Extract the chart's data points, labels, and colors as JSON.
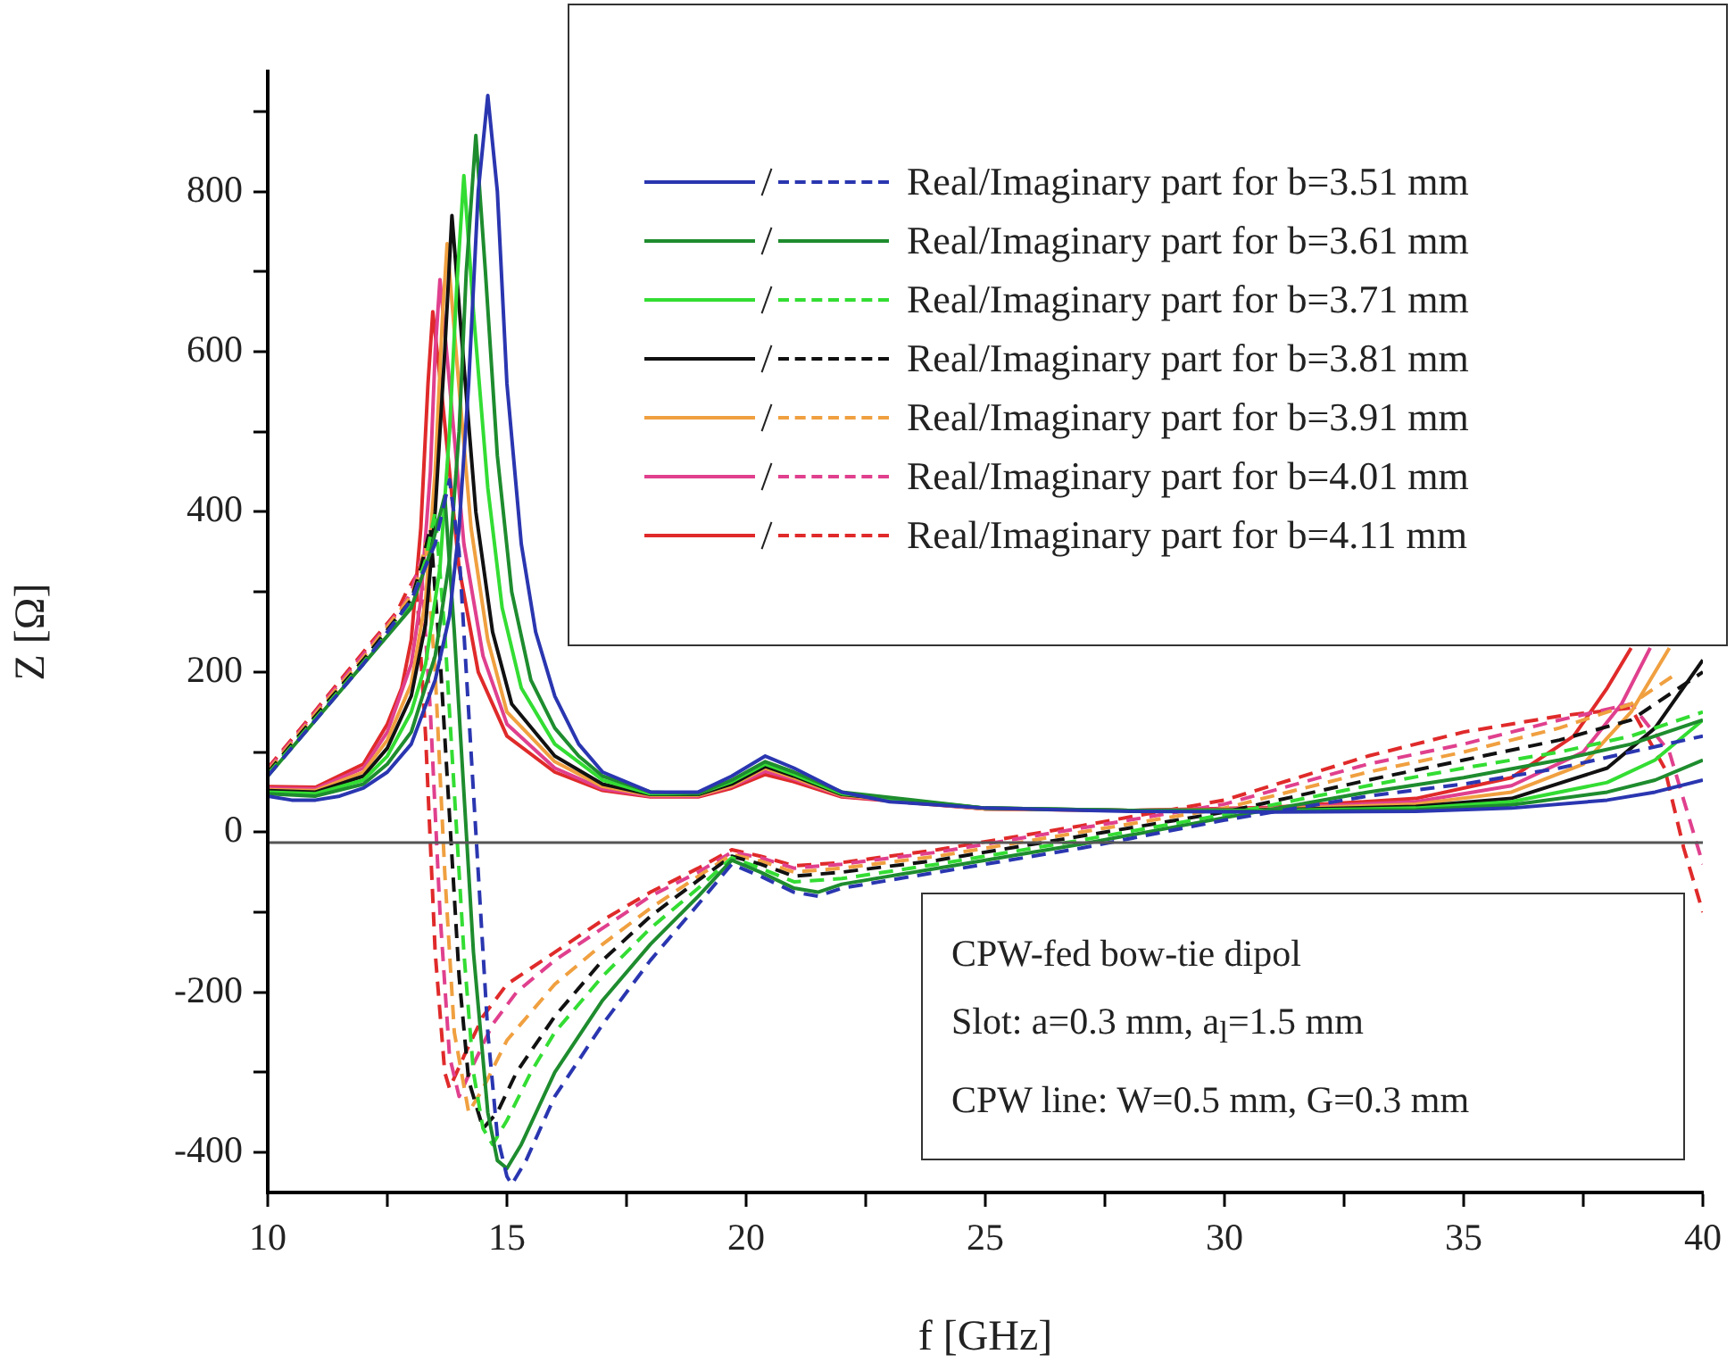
{
  "chart_data": {
    "type": "line",
    "xlabel": "f [GHz]",
    "ylabel": "Z [Ω]",
    "xlim": [
      10,
      40
    ],
    "ylim": [
      -450,
      950
    ],
    "xticks": [
      10,
      {
        "value": 12.5,
        "label": null
      },
      15,
      {
        "value": 17.5,
        "label": null
      },
      20,
      {
        "value": 22.5,
        "label": null
      },
      25,
      {
        "value": 27.5,
        "label": null
      },
      30,
      {
        "value": 32.5,
        "label": null
      },
      35,
      {
        "value": 37.5,
        "label": null
      },
      40
    ],
    "yticks": [
      {
        "value": -300,
        "label": null
      },
      -400,
      -200,
      {
        "value": -100,
        "label": null
      },
      0,
      {
        "value": 100,
        "label": null
      },
      200,
      {
        "value": 300,
        "label": null
      },
      400,
      {
        "value": 500,
        "label": null
      },
      600,
      {
        "value": 700,
        "label": null
      },
      800,
      {
        "value": 900,
        "label": null
      }
    ],
    "legend": "top right",
    "marker": "none",
    "ref_lines": [
      {
        "axis": "y",
        "value": -13,
        "color": "#555555"
      }
    ],
    "annotations": [
      "CPW-fed bow-tie dipol",
      "Slot: a=0.3 mm, a$_{l}$=1.5 mm",
      "CPW line: W=0.5 mm, G=0.3 mm"
    ],
    "series": [
      {
        "name": "Real/Imaginary part for b=3.51 mm",
        "color": "#2a36b0",
        "line_style": "solid",
        "x": [
          10,
          10.5,
          11,
          11.5,
          12,
          12.5,
          13,
          13.5,
          13.8,
          14,
          14.2,
          14.4,
          14.6,
          14.8,
          15,
          15.3,
          15.6,
          16,
          16.5,
          17,
          18,
          19,
          19.7,
          20.4,
          21,
          22,
          23,
          25,
          28,
          31,
          34,
          36,
          38,
          39,
          40
        ],
        "values": [
          45,
          40,
          40,
          45,
          55,
          75,
          110,
          190,
          270,
          380,
          560,
          800,
          920,
          800,
          560,
          360,
          250,
          170,
          110,
          75,
          50,
          50,
          70,
          95,
          80,
          50,
          38,
          30,
          26,
          25,
          26,
          30,
          40,
          50,
          65
        ]
      },
      {
        "color": "#2a36b0",
        "line_style": "dashed",
        "x": [
          10,
          11,
          12,
          13,
          13.5,
          13.8,
          14,
          14.2,
          14.4,
          14.6,
          14.8,
          15,
          15.1,
          15.4,
          16,
          17,
          18,
          19,
          19.7,
          20.3,
          21,
          21.5,
          22,
          24,
          27,
          30,
          33,
          35,
          37,
          38.5,
          40
        ],
        "values": [
          70,
          140,
          210,
          290,
          360,
          440,
          350,
          150,
          -50,
          -250,
          -380,
          -430,
          -440,
          -410,
          -330,
          -240,
          -160,
          -90,
          -40,
          -55,
          -75,
          -80,
          -70,
          -50,
          -20,
          15,
          45,
          60,
          80,
          100,
          120
        ]
      },
      {
        "name": "Real/Imaginary part for b=3.61 mm",
        "color": "#1e8c2e",
        "line_style": "solid",
        "x": [
          10,
          11,
          12,
          12.5,
          13,
          13.5,
          13.8,
          14,
          14.15,
          14.35,
          14.55,
          14.8,
          15.1,
          15.5,
          16,
          16.5,
          17,
          18,
          19,
          19.7,
          20.4,
          21,
          22,
          25,
          28,
          31,
          34,
          36,
          38,
          39,
          40
        ],
        "values": [
          48,
          45,
          60,
          85,
          125,
          220,
          340,
          500,
          700,
          870,
          700,
          470,
          300,
          190,
          130,
          95,
          70,
          50,
          48,
          65,
          88,
          75,
          50,
          30,
          27,
          26,
          28,
          34,
          50,
          65,
          90
        ]
      },
      {
        "color": "#1e8c2e",
        "line_style": "solid",
        "x": [
          10,
          11,
          12,
          13,
          13.4,
          13.7,
          13.9,
          14.1,
          14.3,
          14.6,
          14.8,
          15,
          15.3,
          16,
          17,
          18,
          19,
          19.7,
          20.3,
          21,
          21.5,
          22,
          24,
          27,
          30,
          33,
          35,
          37,
          38.5,
          40
        ],
        "values": [
          70,
          140,
          210,
          280,
          350,
          420,
          250,
          50,
          -150,
          -350,
          -410,
          -420,
          -390,
          -300,
          -210,
          -140,
          -80,
          -35,
          -50,
          -70,
          -75,
          -65,
          -45,
          -15,
          18,
          50,
          68,
          90,
          110,
          140
        ]
      },
      {
        "name": "Real/Imaginary part for b=3.71 mm",
        "color": "#33dd33",
        "line_style": "solid",
        "x": [
          10,
          11,
          12,
          12.5,
          13,
          13.3,
          13.6,
          13.8,
          13.95,
          14.1,
          14.3,
          14.6,
          14.9,
          15.3,
          16,
          17,
          18,
          19,
          19.7,
          20.4,
          21,
          22,
          25,
          28,
          31,
          34,
          36,
          38,
          39,
          40
        ],
        "values": [
          50,
          48,
          65,
          95,
          150,
          210,
          330,
          500,
          680,
          820,
          650,
          430,
          280,
          180,
          110,
          65,
          48,
          48,
          63,
          85,
          72,
          48,
          30,
          27,
          27,
          30,
          38,
          62,
          90,
          140
        ]
      },
      {
        "color": "#33dd33",
        "line_style": "dashed",
        "x": [
          10,
          11,
          12,
          13,
          13.3,
          13.5,
          13.7,
          13.9,
          14.1,
          14.3,
          14.5,
          14.7,
          15,
          15.5,
          16,
          17,
          18,
          19,
          19.7,
          20.3,
          21,
          22,
          24,
          27,
          30,
          33,
          35,
          37,
          38.5,
          40
        ],
        "values": [
          72,
          142,
          212,
          285,
          340,
          400,
          250,
          50,
          -150,
          -300,
          -370,
          -390,
          -360,
          -300,
          -250,
          -180,
          -120,
          -70,
          -32,
          -45,
          -62,
          -58,
          -40,
          -10,
          22,
          58,
          80,
          100,
          120,
          150
        ]
      },
      {
        "name": "Real/Imaginary part for b=3.81 mm",
        "color": "#111111",
        "line_style": "solid",
        "x": [
          10,
          11,
          12,
          12.5,
          13,
          13.3,
          13.5,
          13.7,
          13.85,
          14.05,
          14.35,
          14.7,
          15.1,
          16,
          17,
          18,
          19,
          19.7,
          20.4,
          21,
          22,
          25,
          28,
          31,
          34,
          36,
          38,
          39,
          40
        ],
        "values": [
          52,
          50,
          70,
          105,
          170,
          260,
          400,
          600,
          770,
          620,
          400,
          250,
          160,
          95,
          60,
          47,
          47,
          60,
          82,
          70,
          47,
          30,
          27,
          28,
          32,
          42,
          80,
          130,
          215
        ]
      },
      {
        "color": "#111111",
        "line_style": "dashed",
        "x": [
          10,
          11,
          12,
          13,
          13.2,
          13.4,
          13.6,
          13.8,
          14,
          14.2,
          14.5,
          14.8,
          15.2,
          16,
          17,
          18,
          19,
          19.7,
          20.3,
          21,
          22,
          24,
          27,
          30,
          33,
          35,
          37,
          38.5,
          40
        ],
        "values": [
          74,
          145,
          215,
          290,
          330,
          380,
          220,
          20,
          -180,
          -310,
          -370,
          -350,
          -300,
          -230,
          -160,
          -105,
          -60,
          -30,
          -40,
          -55,
          -50,
          -35,
          -5,
          25,
          65,
          90,
          115,
          140,
          200
        ]
      },
      {
        "name": "Real/Imaginary part for b=3.91 mm",
        "color": "#f0a040",
        "line_style": "solid",
        "x": [
          10,
          11,
          12,
          12.5,
          13,
          13.3,
          13.5,
          13.65,
          13.75,
          13.95,
          14.25,
          14.6,
          15,
          16,
          17,
          18,
          19,
          19.7,
          20.4,
          21,
          22,
          25,
          28,
          31,
          34,
          36,
          37.5,
          38.5,
          39.3
        ],
        "values": [
          53,
          52,
          75,
          115,
          185,
          290,
          450,
          640,
          735,
          590,
          380,
          240,
          150,
          88,
          57,
          46,
          46,
          58,
          80,
          68,
          46,
          29,
          27,
          29,
          35,
          50,
          85,
          150,
          230
        ]
      },
      {
        "color": "#f0a040",
        "line_style": "dashed",
        "x": [
          10,
          11,
          12,
          13,
          13.15,
          13.3,
          13.5,
          13.7,
          13.9,
          14.2,
          14.5,
          15,
          16,
          17,
          18,
          19,
          19.7,
          20.3,
          21,
          22,
          24,
          27,
          30,
          33,
          35,
          37,
          38.5,
          39.5
        ],
        "values": [
          76,
          148,
          218,
          295,
          320,
          360,
          200,
          -50,
          -250,
          -350,
          -320,
          -260,
          -190,
          -140,
          -95,
          -55,
          -28,
          -36,
          -50,
          -45,
          -30,
          0,
          30,
          75,
          100,
          130,
          160,
          200
        ]
      },
      {
        "name": "Real/Imaginary part for b=4.01 mm",
        "color": "#e0408e",
        "line_style": "solid",
        "x": [
          10,
          11,
          12,
          12.5,
          13,
          13.2,
          13.4,
          13.5,
          13.6,
          13.8,
          14.1,
          14.5,
          15,
          16,
          17,
          18,
          19,
          19.7,
          20.4,
          21,
          22,
          25,
          28,
          31,
          34,
          36,
          37.5,
          38.3,
          38.9
        ],
        "values": [
          55,
          54,
          80,
          125,
          210,
          290,
          450,
          600,
          690,
          560,
          360,
          220,
          135,
          80,
          54,
          45,
          45,
          57,
          76,
          66,
          45,
          29,
          27,
          30,
          38,
          58,
          100,
          160,
          230
        ]
      },
      {
        "color": "#e0408e",
        "line_style": "dashed",
        "x": [
          10,
          11,
          12,
          12.8,
          13,
          13.2,
          13.4,
          13.6,
          13.8,
          14,
          14.3,
          14.7,
          15.2,
          16,
          17,
          18,
          19,
          19.7,
          20.3,
          21,
          22,
          24,
          27,
          30,
          33,
          35,
          37,
          38.5,
          39.3,
          40
        ],
        "values": [
          78,
          150,
          222,
          280,
          300,
          340,
          150,
          -100,
          -280,
          -330,
          -290,
          -240,
          -200,
          -160,
          -120,
          -80,
          -50,
          -25,
          -32,
          -45,
          -40,
          -25,
          5,
          35,
          85,
          110,
          140,
          160,
          100,
          -40
        ]
      },
      {
        "name": "Real/Imaginary part for b=4.11 mm",
        "color": "#e02a2a",
        "line_style": "solid",
        "x": [
          10,
          11,
          12,
          12.5,
          12.8,
          13,
          13.2,
          13.35,
          13.45,
          13.65,
          14,
          14.4,
          15,
          16,
          17,
          18,
          19,
          19.7,
          20.4,
          21,
          22,
          25,
          28,
          31,
          34,
          36,
          37.3,
          38,
          38.5
        ],
        "values": [
          57,
          56,
          85,
          135,
          180,
          240,
          380,
          560,
          650,
          540,
          330,
          200,
          120,
          75,
          52,
          44,
          44,
          55,
          72,
          63,
          44,
          29,
          27,
          31,
          42,
          68,
          120,
          180,
          230
        ]
      },
      {
        "color": "#e02a2a",
        "line_style": "dashed",
        "x": [
          10,
          11,
          12,
          12.7,
          12.9,
          13.1,
          13.3,
          13.5,
          13.7,
          13.8,
          14.1,
          14.5,
          15,
          16,
          17,
          18,
          19,
          19.7,
          20.3,
          21,
          22,
          24,
          27,
          30,
          33,
          35,
          37,
          38.5,
          39.2,
          39.6,
          40
        ],
        "values": [
          80,
          152,
          225,
          275,
          300,
          320,
          120,
          -150,
          -300,
          -320,
          -280,
          -230,
          -190,
          -150,
          -110,
          -75,
          -45,
          -22,
          -30,
          -42,
          -38,
          -22,
          8,
          40,
          95,
          125,
          145,
          155,
          80,
          -20,
          -100
        ]
      }
    ]
  }
}
